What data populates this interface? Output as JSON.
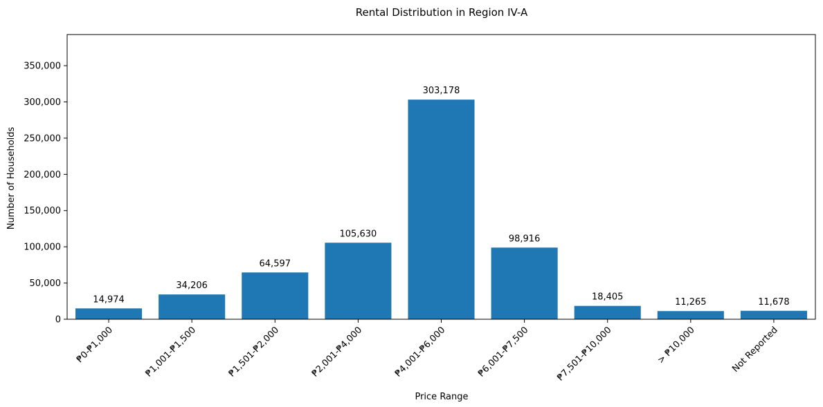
{
  "chart_data": {
    "type": "bar",
    "title": "Rental Distribution in Region IV-A",
    "xlabel": "Price Range",
    "ylabel": "Number of Households",
    "categories": [
      "₱0-₱1,000",
      "₱1,001-₱1,500",
      "₱1,501-₱2,000",
      "₱2,001-₱4,000",
      "₱4,001-₱6,000",
      "₱6,001-₱7,500",
      "₱7,501-₱10,000",
      "> ₱10,000",
      "Not Reported"
    ],
    "values": [
      14974,
      34206,
      64597,
      105630,
      303178,
      98916,
      18405,
      11265,
      11678
    ],
    "value_labels": [
      "14,974",
      "34,206",
      "64,597",
      "105,630",
      "303,178",
      "98,916",
      "18,405",
      "11,265",
      "11,678"
    ],
    "ylim": [
      0,
      393000
    ],
    "yticks": [
      0,
      50000,
      100000,
      150000,
      200000,
      250000,
      300000,
      350000
    ],
    "ytick_labels": [
      "0",
      "50,000",
      "100,000",
      "150,000",
      "200,000",
      "250,000",
      "300,000",
      "350,000"
    ],
    "bar_color": "#1f77b4",
    "grid": false,
    "legend": "none"
  }
}
